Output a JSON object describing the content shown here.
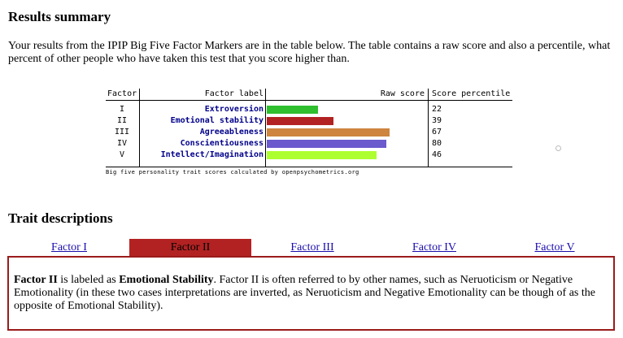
{
  "results": {
    "heading": "Results summary",
    "intro": "Your results from the IPIP Big Five Factor Markers are in the table below. The table contains a raw score and also a percentile, what percent of other people who have taken this test that you score higher than."
  },
  "chart_data": {
    "type": "bar",
    "columns": [
      "Factor",
      "Factor label",
      "Raw score",
      "Score percentile"
    ],
    "factors": [
      "I",
      "II",
      "III",
      "IV",
      "V"
    ],
    "categories": [
      "Extroversion",
      "Emotional stability",
      "Agreeableness",
      "Conscientiousness",
      "Intellect/Imagination"
    ],
    "values": [
      22,
      39,
      67,
      80,
      46
    ],
    "raw_score_bar_fraction": [
      0.32,
      0.42,
      0.77,
      0.75,
      0.69
    ],
    "bar_colors": [
      "#2fbf2f",
      "#b22222",
      "#cd853f",
      "#6a5acd",
      "#adff2f"
    ],
    "caption": "Big five personality trait scores calculated by openpsychometrics.org"
  },
  "traits": {
    "heading": "Trait descriptions",
    "tabs": [
      "Factor I",
      "Factor II",
      "Factor III",
      "Factor IV",
      "Factor V"
    ],
    "active_tab": 1,
    "description": {
      "lead_bold": "Factor II",
      "text_1": " is labeled as ",
      "name_bold": "Emotional Stability",
      "text_2": ". Factor II is often referred to by other names, such as Neruoticism or Negative Emotionality (in these two cases interpretations are inverted, as Neruoticism and Negative Emotionality can be though of as the opposite of Emotional Stability)."
    }
  }
}
